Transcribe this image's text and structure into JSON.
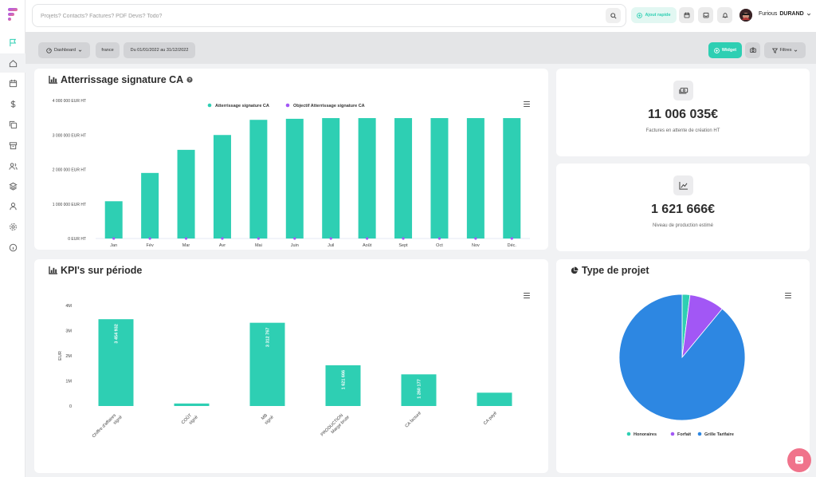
{
  "app": {
    "brand_colors": {
      "accent": "#2ecfb3",
      "series2": "#a257f5",
      "blue": "#2d87e2",
      "fab": "#f0738b"
    }
  },
  "sidebar": {
    "items": [
      {
        "icon": "flag-icon"
      },
      {
        "icon": "home-icon"
      },
      {
        "icon": "calendar-icon"
      },
      {
        "icon": "dollar-icon"
      },
      {
        "icon": "copy-icon"
      },
      {
        "icon": "archive-icon"
      },
      {
        "icon": "users-icon"
      },
      {
        "icon": "layers-icon"
      },
      {
        "icon": "user-icon"
      },
      {
        "icon": "settings-icon"
      },
      {
        "icon": "info-icon"
      }
    ]
  },
  "topbar": {
    "search_placeholder": "Projets? Contacts? Factures? PDF Devis? Todo?",
    "quick_add_label": "Ajout rapide",
    "user_first": "Furious",
    "user_last": "DURAND"
  },
  "filters": {
    "dashboard_label": "Dashboard",
    "region_label": "france",
    "period_label": "Du 01/01/2022 au 31/12/2022",
    "widget_label": "Widget",
    "filters_label": "Filtres"
  },
  "stats": [
    {
      "value": "11 006 035€",
      "label": "Factures en attente de création HT",
      "icon": "money-icon"
    },
    {
      "value": "1 621 666€",
      "label": "Niveau de production estimé",
      "icon": "trend-chart-icon"
    }
  ],
  "chart_data": [
    {
      "type": "bar",
      "title": "Atterrissage signature CA",
      "categories": [
        "Jan",
        "Fév",
        "Mar",
        "Avr",
        "Mai",
        "Juin",
        "Juil",
        "Août",
        "Sept",
        "Oct",
        "Nov",
        "Déc."
      ],
      "series": [
        {
          "name": "Atterrissage signature CA",
          "color": "#2ecfb3",
          "values": [
            1080000,
            1900000,
            2570000,
            3000000,
            3440000,
            3470000,
            3490000,
            3490000,
            3490000,
            3490000,
            3490000,
            3490000
          ]
        },
        {
          "name": "Objectif Atterrissage signature CA",
          "color": "#a257f5",
          "values": [
            0,
            0,
            0,
            0,
            0,
            0,
            0,
            0,
            0,
            0,
            0,
            0
          ]
        }
      ],
      "yticks": [
        "0 EUR HT",
        "1 000 000 EUR HT",
        "2 000 000 EUR HT",
        "3 000 000 EUR HT",
        "4 000 000 EUR HT"
      ],
      "ylim": [
        0,
        4000000
      ],
      "legend": "top-center"
    },
    {
      "type": "bar",
      "title": "KPI's sur période",
      "categories": [
        [
          "Chiffre d'affaires",
          "signé"
        ],
        [
          "COÛT",
          "signé"
        ],
        [
          "MB",
          "signé"
        ],
        [
          "PRODUCTION",
          "Marge brute"
        ],
        [
          "CA facturé"
        ],
        [
          "CA payé"
        ]
      ],
      "values": [
        3454932,
        100000,
        3312767,
        1621666,
        1260177,
        530000
      ],
      "data_labels": [
        "3 454 932",
        "",
        "3 312 767",
        "1 621 666",
        "1 260 177",
        ""
      ],
      "yticks": [
        "0",
        "1M",
        "2M",
        "3M",
        "4M"
      ],
      "ylabel": "EUR",
      "ylim": [
        0,
        4000000
      ],
      "color": "#2ecfb3"
    },
    {
      "type": "pie",
      "title": "Type de projet",
      "series": [
        {
          "name": "Honoraires",
          "value": 2,
          "color": "#2ecfb3"
        },
        {
          "name": "Forfait",
          "value": 9,
          "color": "#a257f5"
        },
        {
          "name": "Grille Tarifaire",
          "value": 89,
          "color": "#2d87e2"
        }
      ],
      "legend": "bottom-center"
    }
  ]
}
